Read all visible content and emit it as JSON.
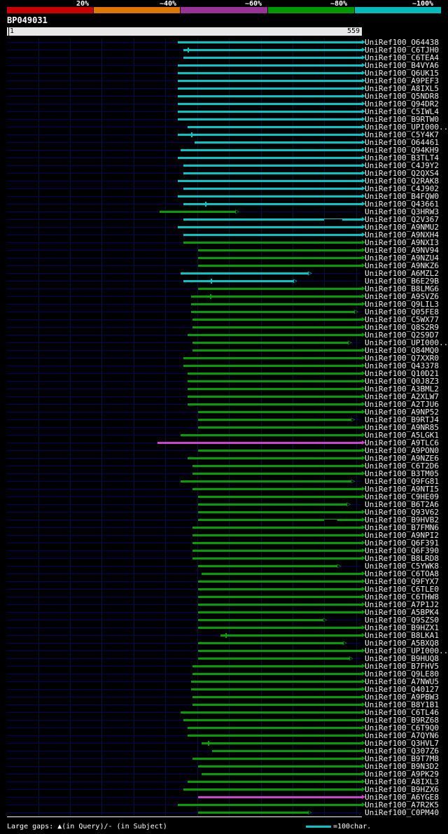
{
  "footer": {
    "gaps_note": "Large gaps: ▲(in Query)/- (in Subject)",
    "scale_note": "=100char.",
    "swatch_color": "#00c8c8"
  },
  "chart_data": {
    "type": "bar",
    "subtype": "horizontal-span-alignment-overview",
    "title": "BP049031",
    "x_axis": {
      "start": 1,
      "end": 559,
      "unit": "query position"
    },
    "grid": true,
    "identity_scale": [
      {
        "label": "20%",
        "color": "#cc0000"
      },
      {
        "label": "~40%",
        "color": "#dd7700"
      },
      {
        "label": "~60%",
        "color": "#993399"
      },
      {
        "label": "~80%",
        "color": "#009900"
      },
      {
        "label": "~100%",
        "color": "#00bbbb"
      }
    ],
    "colors": {
      "cyan": "#00c8c8",
      "green": "#00a000",
      "magenta": "#cc44cc"
    },
    "rows": [
      {
        "l": "UniRef100_O64438",
        "c": "cyan",
        "s": 270,
        "e": 559
      },
      {
        "l": "UniRef100_C6TJH0",
        "c": "cyan",
        "s": 278,
        "e": 559,
        "t": [
          286
        ]
      },
      {
        "l": "UniRef100_C6TEA4",
        "c": "cyan",
        "s": 278,
        "e": 559
      },
      {
        "l": "UniRef100_B4VYA6",
        "c": "cyan",
        "s": 270,
        "e": 559
      },
      {
        "l": "UniRef100_Q6UK15",
        "c": "cyan",
        "s": 270,
        "e": 559
      },
      {
        "l": "UniRef100_A9PEF3",
        "c": "cyan",
        "s": 270,
        "e": 559
      },
      {
        "l": "UniRef100_A8IXL5",
        "c": "cyan",
        "s": 270,
        "e": 559
      },
      {
        "l": "UniRef100_Q5NDR8",
        "c": "cyan",
        "s": 270,
        "e": 559
      },
      {
        "l": "UniRef100_Q94DR2",
        "c": "cyan",
        "s": 270,
        "e": 559
      },
      {
        "l": "UniRef100_C5IWL4",
        "c": "cyan",
        "s": 270,
        "e": 559
      },
      {
        "l": "UniRef100_B9RTW0",
        "c": "cyan",
        "s": 270,
        "e": 559
      },
      {
        "l": "UniRef100_UPI000...",
        "c": "cyan",
        "s": 285,
        "e": 559
      },
      {
        "l": "UniRef100_C5Y4K7",
        "c": "cyan",
        "s": 270,
        "e": 559,
        "t": [
          291
        ]
      },
      {
        "l": "UniRef100_O64461",
        "c": "cyan",
        "s": 296,
        "e": 559
      },
      {
        "l": "UniRef100_Q94KH9",
        "c": "cyan",
        "s": 274,
        "e": 559
      },
      {
        "l": "UniRef100_B3TLT4",
        "c": "cyan",
        "s": 270,
        "e": 559
      },
      {
        "l": "UniRef100_C4J9Y2",
        "c": "cyan",
        "s": 278,
        "e": 559
      },
      {
        "l": "UniRef100_Q2QXS4",
        "c": "cyan",
        "s": 278,
        "e": 559
      },
      {
        "l": "UniRef100_Q2RAK8",
        "c": "cyan",
        "s": 270,
        "e": 559
      },
      {
        "l": "UniRef100_C4J902",
        "c": "cyan",
        "s": 278,
        "e": 559
      },
      {
        "l": "UniRef100_B4FQW0",
        "c": "cyan",
        "s": 270,
        "e": 559
      },
      {
        "l": "UniRef100_Q43661",
        "c": "cyan",
        "s": 278,
        "e": 559,
        "t": [
          313
        ]
      },
      {
        "l": "UniRef100_Q3HRW3",
        "c": "green",
        "s": 241,
        "e": 361,
        "tip": "open"
      },
      {
        "l": "UniRef100_Q2V367",
        "c": "cyan",
        "s": 278,
        "e": 559,
        "g": [
          500,
          528
        ]
      },
      {
        "l": "UniRef100_A9NMU2",
        "c": "cyan",
        "s": 270,
        "e": 559
      },
      {
        "l": "UniRef100_A9NXH4",
        "c": "cyan",
        "s": 278,
        "e": 559
      },
      {
        "l": "UniRef100_A9NXI3",
        "c": "green",
        "s": 278,
        "e": 559
      },
      {
        "l": "UniRef100_A9NV94",
        "c": "green",
        "s": 301,
        "e": 559
      },
      {
        "l": "UniRef100_A9NZU4",
        "c": "green",
        "s": 301,
        "e": 559
      },
      {
        "l": "UniRef100_A9NKZ6",
        "c": "green",
        "s": 301,
        "e": 559
      },
      {
        "l": "UniRef100_A6MZL2",
        "c": "cyan",
        "s": 274,
        "e": 475,
        "tip": "open"
      },
      {
        "l": "UniRef100_B6E29B",
        "c": "cyan",
        "s": 278,
        "e": 452,
        "tip": "open",
        "t": [
          322
        ]
      },
      {
        "l": "UniRef100_B8LMG6",
        "c": "green",
        "s": 301,
        "e": 559
      },
      {
        "l": "UniRef100_A9SVZ6",
        "c": "green",
        "s": 290,
        "e": 559,
        "t": [
          321
        ]
      },
      {
        "l": "UniRef100_Q9LIL3",
        "c": "green",
        "s": 290,
        "e": 559
      },
      {
        "l": "UniRef100_Q05FE8",
        "c": "green",
        "s": 290,
        "e": 548,
        "tip": "open"
      },
      {
        "l": "UniRef100_C5WX77",
        "c": "green",
        "s": 293,
        "e": 559
      },
      {
        "l": "UniRef100_Q8S2R9",
        "c": "green",
        "s": 293,
        "e": 559
      },
      {
        "l": "UniRef100_Q2S9D7",
        "c": "green",
        "s": 285,
        "e": 559
      },
      {
        "l": "UniRef100_UPI000...",
        "c": "green",
        "s": 293,
        "e": 538,
        "tip": "open"
      },
      {
        "l": "UniRef100_Q84MQ0",
        "c": "green",
        "s": 293,
        "e": 559
      },
      {
        "l": "UniRef100_Q7XXR0",
        "c": "green",
        "s": 278,
        "e": 559
      },
      {
        "l": "UniRef100_Q43378",
        "c": "green",
        "s": 278,
        "e": 559
      },
      {
        "l": "UniRef100_Q10D21",
        "c": "green",
        "s": 285,
        "e": 559
      },
      {
        "l": "UniRef100_Q0J8Z3",
        "c": "green",
        "s": 285,
        "e": 559
      },
      {
        "l": "UniRef100_A3BML2",
        "c": "green",
        "s": 285,
        "e": 559
      },
      {
        "l": "UniRef100_A2XLW7",
        "c": "green",
        "s": 285,
        "e": 559
      },
      {
        "l": "UniRef100_A2TJU6",
        "c": "green",
        "s": 285,
        "e": 559
      },
      {
        "l": "UniRef100_A9NP52",
        "c": "green",
        "s": 301,
        "e": 559
      },
      {
        "l": "UniRef100_B9RTJ4",
        "c": "green",
        "s": 301,
        "e": 543,
        "tip": "open"
      },
      {
        "l": "UniRef100_A9NR85",
        "c": "green",
        "s": 301,
        "e": 559
      },
      {
        "l": "UniRef100_A5LGK1",
        "c": "green",
        "s": 274,
        "e": 559
      },
      {
        "l": "UniRef100_A9TLC6",
        "c": "magenta",
        "s": 238,
        "e": 559
      },
      {
        "l": "UniRef100_A9PON0",
        "c": "green",
        "s": 301,
        "e": 559
      },
      {
        "l": "UniRef100_A9NZE6",
        "c": "green",
        "s": 285,
        "e": 559
      },
      {
        "l": "UniRef100_C6T2D6",
        "c": "green",
        "s": 293,
        "e": 559
      },
      {
        "l": "UniRef100_B3TM05",
        "c": "green",
        "s": 293,
        "e": 559
      },
      {
        "l": "UniRef100_Q9FG81",
        "c": "green",
        "s": 274,
        "e": 543,
        "tip": "open"
      },
      {
        "l": "UniRef100_A9NTI5",
        "c": "green",
        "s": 293,
        "e": 559
      },
      {
        "l": "UniRef100_C9HE09",
        "c": "green",
        "s": 301,
        "e": 559
      },
      {
        "l": "UniRef100_B6T2A6",
        "c": "green",
        "s": 301,
        "e": 536,
        "tip": "open"
      },
      {
        "l": "UniRef100_Q93V62",
        "c": "green",
        "s": 301,
        "e": 559
      },
      {
        "l": "UniRef100_B9HVB2",
        "c": "green",
        "s": 301,
        "e": 559,
        "g": [
          500,
          520
        ]
      },
      {
        "l": "UniRef100_B7FMN6",
        "c": "green",
        "s": 293,
        "e": 559
      },
      {
        "l": "UniRef100_A9NPI2",
        "c": "green",
        "s": 293,
        "e": 559
      },
      {
        "l": "UniRef100_Q6F391",
        "c": "green",
        "s": 293,
        "e": 559
      },
      {
        "l": "UniRef100_Q6F390",
        "c": "green",
        "s": 293,
        "e": 559
      },
      {
        "l": "UniRef100_B8LRD8",
        "c": "green",
        "s": 293,
        "e": 559
      },
      {
        "l": "UniRef100_C5YWK8",
        "c": "green",
        "s": 301,
        "e": 521,
        "tip": "open"
      },
      {
        "l": "UniRef100_C6TOA8",
        "c": "green",
        "s": 307,
        "e": 559
      },
      {
        "l": "UniRef100_Q9FYX7",
        "c": "green",
        "s": 301,
        "e": 559
      },
      {
        "l": "UniRef100_C6TLE0",
        "c": "green",
        "s": 301,
        "e": 559
      },
      {
        "l": "UniRef100_C6THW8",
        "c": "green",
        "s": 301,
        "e": 559
      },
      {
        "l": "UniRef100_A7P1J2",
        "c": "green",
        "s": 301,
        "e": 559
      },
      {
        "l": "UniRef100_A5BPK4",
        "c": "green",
        "s": 301,
        "e": 559
      },
      {
        "l": "UniRef100_Q9SZS0",
        "c": "green",
        "s": 301,
        "e": 499,
        "tip": "open"
      },
      {
        "l": "UniRef100_B9HZX1",
        "c": "green",
        "s": 301,
        "e": 559
      },
      {
        "l": "UniRef100_B8LKA1",
        "c": "green",
        "s": 337,
        "e": 559,
        "t": [
          345
        ]
      },
      {
        "l": "UniRef100_A5BXQ8",
        "c": "green",
        "s": 301,
        "e": 530,
        "tip": "open"
      },
      {
        "l": "UniRef100_UPI000...",
        "c": "green",
        "s": 301,
        "e": 559
      },
      {
        "l": "UniRef100_B9HUQ8",
        "c": "green",
        "s": 301,
        "e": 540,
        "tip": "open"
      },
      {
        "l": "UniRef100_B7FHV5",
        "c": "green",
        "s": 293,
        "e": 559
      },
      {
        "l": "UniRef100_Q9LE80",
        "c": "green",
        "s": 293,
        "e": 559
      },
      {
        "l": "UniRef100_A7NWU5",
        "c": "green",
        "s": 290,
        "e": 559
      },
      {
        "l": "UniRef100_Q40127",
        "c": "green",
        "s": 290,
        "e": 559
      },
      {
        "l": "UniRef100_A9PBW3",
        "c": "green",
        "s": 293,
        "e": 559
      },
      {
        "l": "UniRef100_B8Y1B1",
        "c": "green",
        "s": 293,
        "e": 559
      },
      {
        "l": "UniRef100_C6TL46",
        "c": "green",
        "s": 274,
        "e": 559
      },
      {
        "l": "UniRef100_B9RZ68",
        "c": "green",
        "s": 278,
        "e": 559
      },
      {
        "l": "UniRef100_C6T9Q0",
        "c": "green",
        "s": 285,
        "e": 559
      },
      {
        "l": "UniRef100_A7QYN6",
        "c": "green",
        "s": 285,
        "e": 559
      },
      {
        "l": "UniRef100_Q3HVL7",
        "c": "green",
        "s": 307,
        "e": 559,
        "t": [
          318
        ]
      },
      {
        "l": "UniRef100_Q307Z6",
        "c": "green",
        "s": 323,
        "e": 559
      },
      {
        "l": "UniRef100_B9T7M8",
        "c": "green",
        "s": 293,
        "e": 559
      },
      {
        "l": "UniRef100_B9N3D2",
        "c": "green",
        "s": 301,
        "e": 559
      },
      {
        "l": "UniRef100_A9PK29",
        "c": "green",
        "s": 307,
        "e": 559
      },
      {
        "l": "UniRef100_A8IXL3",
        "c": "green",
        "s": 285,
        "e": 559
      },
      {
        "l": "UniRef100_B9HZX6",
        "c": "green",
        "s": 278,
        "e": 559
      },
      {
        "l": "UniRef100_A6YGE8",
        "c": "magenta",
        "s": 301,
        "e": 559
      },
      {
        "l": "UniRef100_A7R2K5",
        "c": "green",
        "s": 270,
        "e": 559
      },
      {
        "l": "UniRef100_C0PM40",
        "c": "green",
        "s": 301,
        "e": 475,
        "tip": "open"
      }
    ]
  }
}
